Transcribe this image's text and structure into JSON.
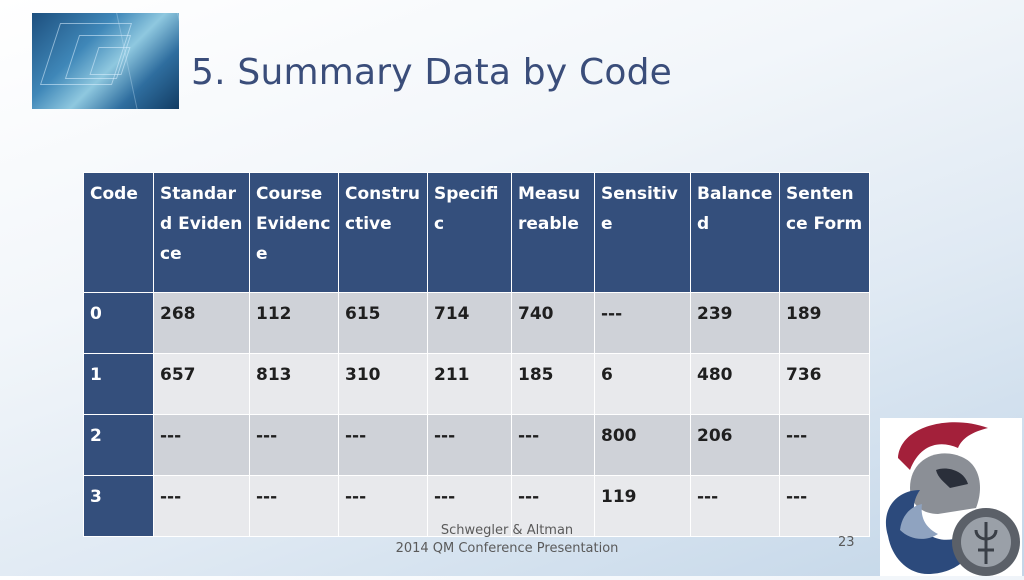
{
  "slide": {
    "title": "5. Summary Data by Code",
    "footer_line1": "Schwegler & Altman",
    "footer_line2": "2014 QM Conference Presentation",
    "page_number": "23"
  },
  "table": {
    "headers": [
      "Code",
      "Standard Evidence",
      "Course Evidence",
      "Constructive",
      "Specific",
      "Measureable",
      "Sensitive",
      "Balanced",
      "Sentence Form"
    ],
    "rows": [
      [
        "0",
        "268",
        "112",
        "615",
        "714",
        "740",
        "---",
        "239",
        "189"
      ],
      [
        "1",
        "657",
        "813",
        "310",
        "211",
        "185",
        "6",
        "480",
        "736"
      ],
      [
        "2",
        "---",
        "---",
        "---",
        "---",
        "---",
        "800",
        "206",
        "---"
      ],
      [
        "3",
        "---",
        "---",
        "---",
        "---",
        "---",
        "119",
        "---",
        "---"
      ]
    ]
  },
  "colors": {
    "header_bg": "#344f7c",
    "title": "#3a4d7a",
    "row_dark": "#cfd2d8",
    "row_light": "#e8e9ec",
    "logo_red": "#a3203a",
    "logo_blue": "#2c4a7c"
  },
  "icons": {
    "corner_image": "glass-building-photo",
    "logo": "trojan-warrior-helmet-logo"
  }
}
